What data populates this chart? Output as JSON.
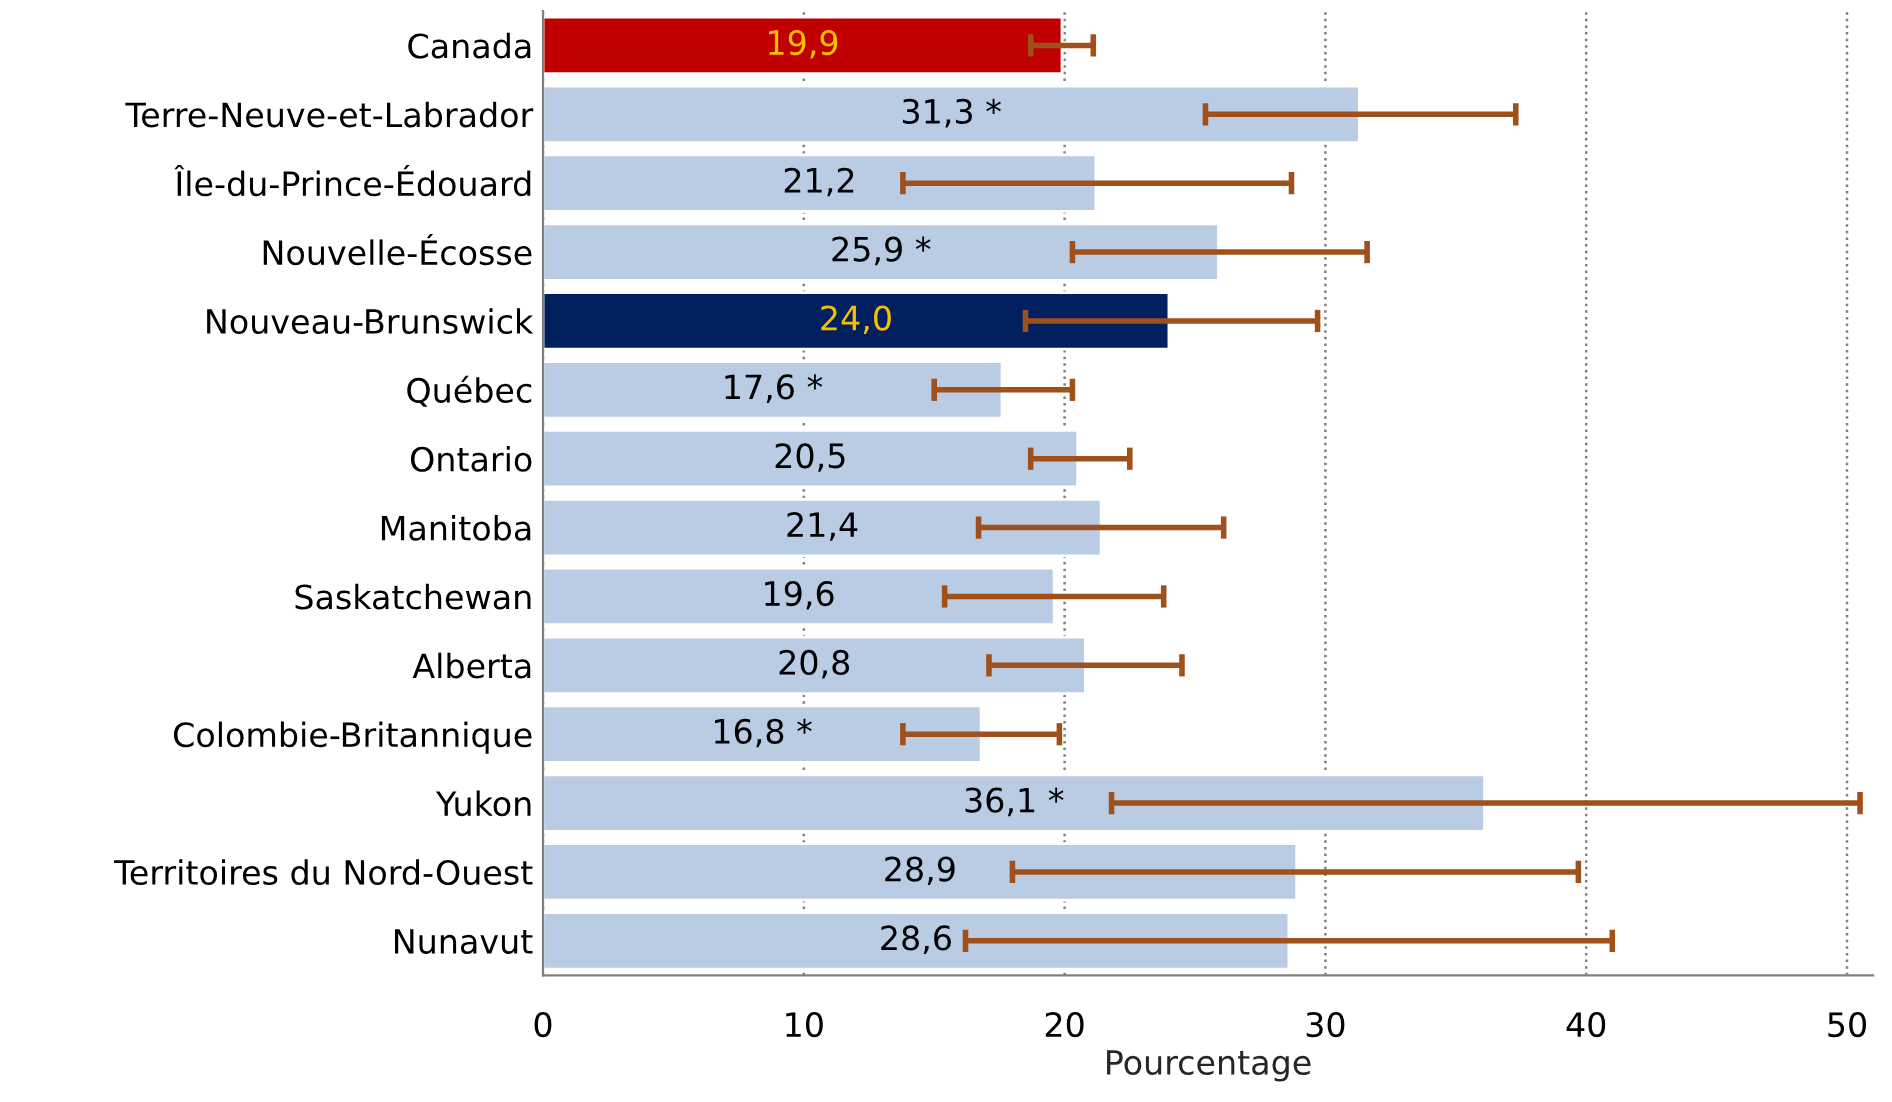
{
  "chart_data": {
    "type": "bar",
    "orientation": "horizontal",
    "xlabel": "Pourcentage",
    "categories": [
      "Canada",
      "Terre-Neuve-et-Labrador",
      "Île-du-Prince-Édouard",
      "Nouvelle-Écosse",
      "Nouveau-Brunswick",
      "Québec",
      "Ontario",
      "Manitoba",
      "Saskatchewan",
      "Alberta",
      "Colombie-Britannique",
      "Yukon",
      "Territoires du Nord-Ouest",
      "Nunavut"
    ],
    "values": [
      19.9,
      31.3,
      21.2,
      25.9,
      24.0,
      17.6,
      20.5,
      21.4,
      19.6,
      20.8,
      16.8,
      36.1,
      28.9,
      28.6
    ],
    "value_labels": [
      "19,9",
      "31,3 *",
      "21,2",
      "25,9 *",
      "24,0",
      "17,6 *",
      "20,5",
      "21,4",
      "19,6",
      "20,8",
      "16,8 *",
      "36,1 *",
      "28,9",
      "28,6"
    ],
    "errors": [
      [
        18.7,
        21.1
      ],
      [
        25.4,
        37.3
      ],
      [
        13.8,
        28.7
      ],
      [
        20.3,
        31.6
      ],
      [
        18.5,
        29.7
      ],
      [
        15.0,
        20.3
      ],
      [
        18.7,
        22.5
      ],
      [
        16.7,
        26.1
      ],
      [
        15.4,
        23.8
      ],
      [
        17.1,
        24.5
      ],
      [
        13.8,
        19.8
      ],
      [
        21.8,
        50.5
      ],
      [
        18.0,
        39.7
      ],
      [
        16.2,
        41.0
      ]
    ],
    "colors": [
      "#c00000",
      "#b9cce4",
      "#b9cce4",
      "#b9cce4",
      "#002060",
      "#b9cce4",
      "#b9cce4",
      "#b9cce4",
      "#b9cce4",
      "#b9cce4",
      "#b9cce4",
      "#b9cce4",
      "#b9cce4",
      "#b9cce4"
    ],
    "xlim": [
      0,
      51
    ],
    "xticks": [
      0,
      10,
      20,
      30,
      40,
      50
    ],
    "grid": "x"
  }
}
